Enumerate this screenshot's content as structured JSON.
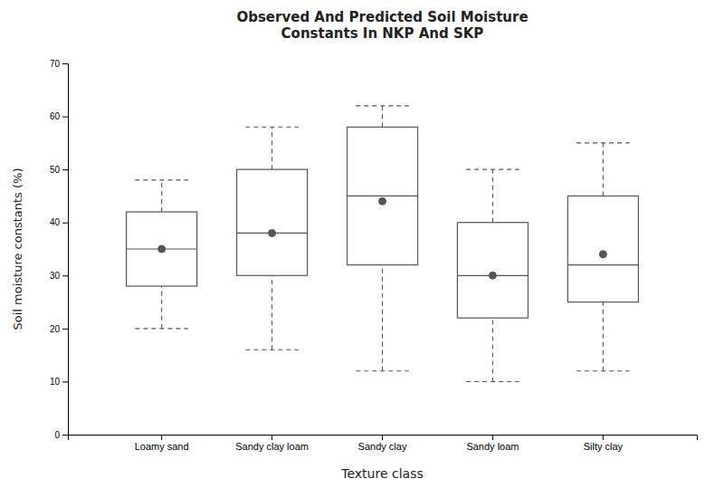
{
  "chart_data": {
    "type": "box",
    "title": "Observed And Predicted Soil Moisture\nConstants In NKP And SKP",
    "xlabel": "Texture class",
    "ylabel": "Soil moisture constants (%)",
    "categories": [
      "Loamy sand",
      "Sandy clay loam",
      "Sandy clay",
      "Sandy loam",
      "Silty clay"
    ],
    "boxes": [
      {
        "q1": 28,
        "median": 35,
        "q3": 42,
        "whisker_low": 20,
        "whisker_high": 48,
        "mean": 35
      },
      {
        "q1": 30,
        "median": 38,
        "q3": 50,
        "whisker_low": 16,
        "whisker_high": 58,
        "mean": 38
      },
      {
        "q1": 32,
        "median": 45,
        "q3": 58,
        "whisker_low": 12,
        "whisker_high": 62,
        "mean": 44
      },
      {
        "q1": 22,
        "median": 30,
        "q3": 40,
        "whisker_low": 10,
        "whisker_high": 50,
        "mean": 30
      },
      {
        "q1": 25,
        "median": 32,
        "q3": 45,
        "whisker_low": 12,
        "whisker_high": 55,
        "mean": 34
      }
    ],
    "ylim": [
      0,
      70
    ],
    "yticks": [
      0,
      10,
      20,
      30,
      40,
      50,
      60,
      70
    ],
    "color": "#555555",
    "marker": "circle",
    "line_style": "dashed",
    "grid": false
  }
}
